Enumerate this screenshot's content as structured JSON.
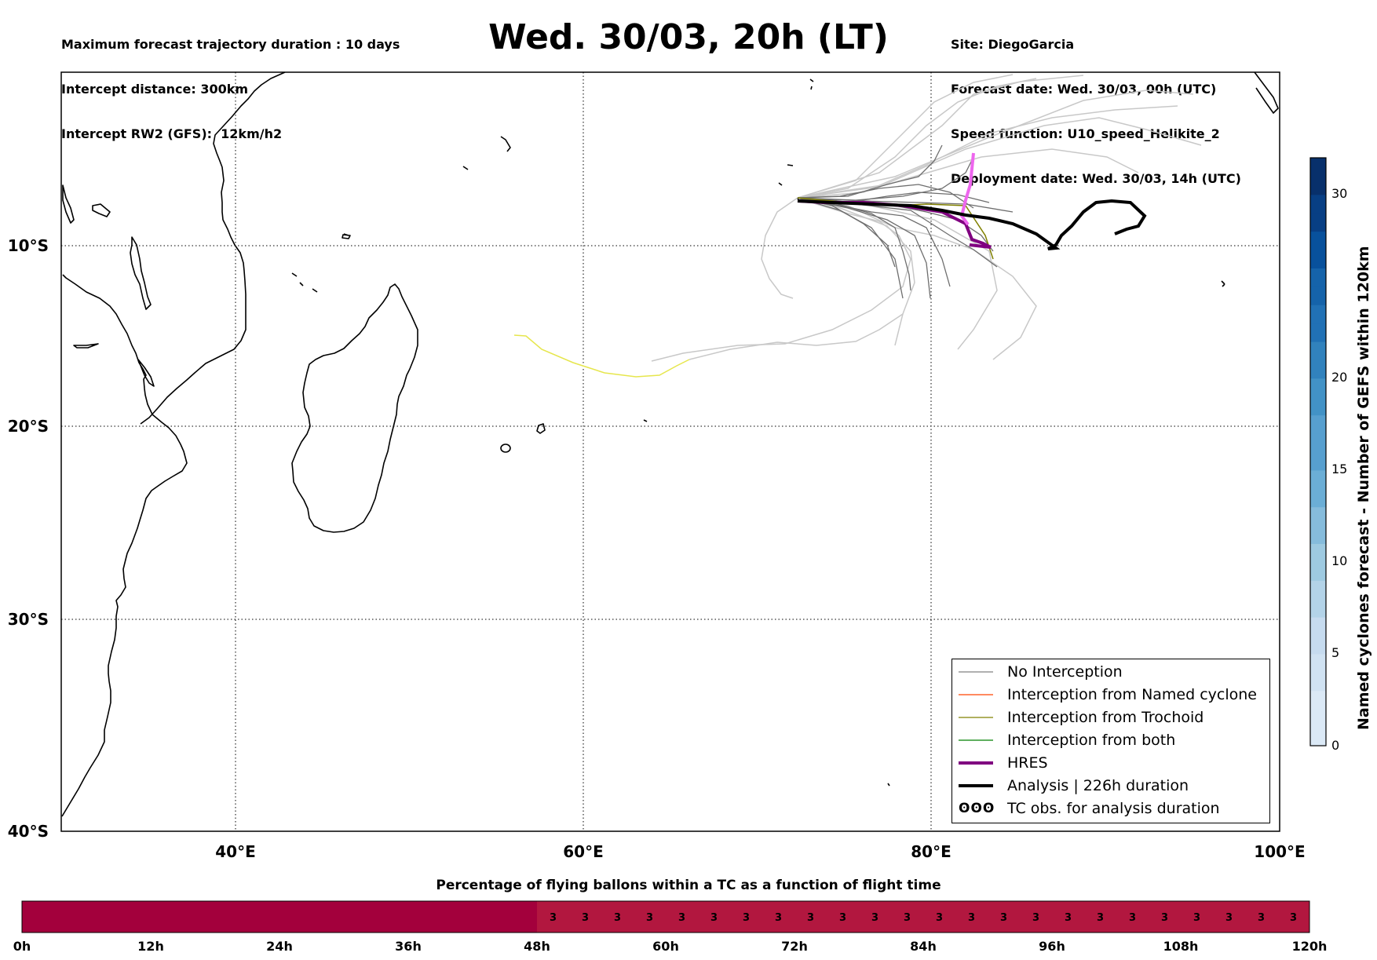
{
  "header": {
    "left_lines": [
      "Maximum forecast trajectory duration : 10 days",
      "Intercept distance: 300km",
      "Intercept RW2 (GFS):  12km/h2"
    ],
    "title": "Wed. 30/03, 20h (LT)",
    "right_lines": [
      "Site: DiegoGarcia",
      "Forecast date: Wed. 30/03, 00h (UTC)",
      "Speed function: U10_speed_Helikite_2",
      "Deployment date: Wed. 30/03, 14h (UTC)"
    ]
  },
  "map": {
    "lat_labels": [
      "10°S",
      "20°S",
      "30°S",
      "40°S"
    ],
    "lon_labels": [
      "40°E",
      "60°E",
      "80°E",
      "100°E"
    ],
    "lon_range": [
      30,
      100
    ],
    "lat_range": [
      -40,
      -0.5
    ],
    "gridlines": "dotted"
  },
  "legend": {
    "items": [
      {
        "label": "No Interception",
        "color": "#808080"
      },
      {
        "label": "Interception from Named cyclone",
        "color": "#ff4500"
      },
      {
        "label": "Interception from Trochoid",
        "color": "#808000"
      },
      {
        "label": "Interception from both",
        "color": "#008000"
      },
      {
        "label": "HRES",
        "color": "#800080"
      },
      {
        "label": "Analysis | 226h duration",
        "color": "#000000"
      },
      {
        "label": "TC obs. for analysis duration",
        "color": "#000000"
      }
    ],
    "tc_symbol": "ʘʘʘ"
  },
  "colorbar": {
    "label": "Named cyclones forecast - Number of GEFS within 120km",
    "ticks": [
      "0",
      "5",
      "10",
      "15",
      "20",
      "30"
    ],
    "range": [
      0,
      32
    ],
    "colors": [
      "#dbe9f6",
      "#c6dbef",
      "#9ecae1",
      "#6baed6",
      "#4292c6",
      "#2171b5",
      "#08519c",
      "#08306b"
    ]
  },
  "timebar": {
    "title": "Percentage of flying ballons within a TC as a function of flight time",
    "labels": [
      "0h",
      "12h",
      "24h",
      "36h",
      "48h",
      "60h",
      "72h",
      "84h",
      "96h",
      "108h",
      "120h"
    ],
    "segments_hours": 40,
    "values": [
      0,
      0,
      0,
      0,
      0,
      0,
      0,
      0,
      0,
      0,
      0,
      0,
      0,
      0,
      0,
      0,
      3,
      3,
      3,
      3,
      3,
      3,
      3,
      3,
      3,
      3,
      3,
      3,
      3,
      3,
      3,
      3,
      3,
      3,
      3,
      3,
      3,
      3,
      3,
      3
    ],
    "color_zero": "#a3003c",
    "color_three": "#b2173f"
  }
}
